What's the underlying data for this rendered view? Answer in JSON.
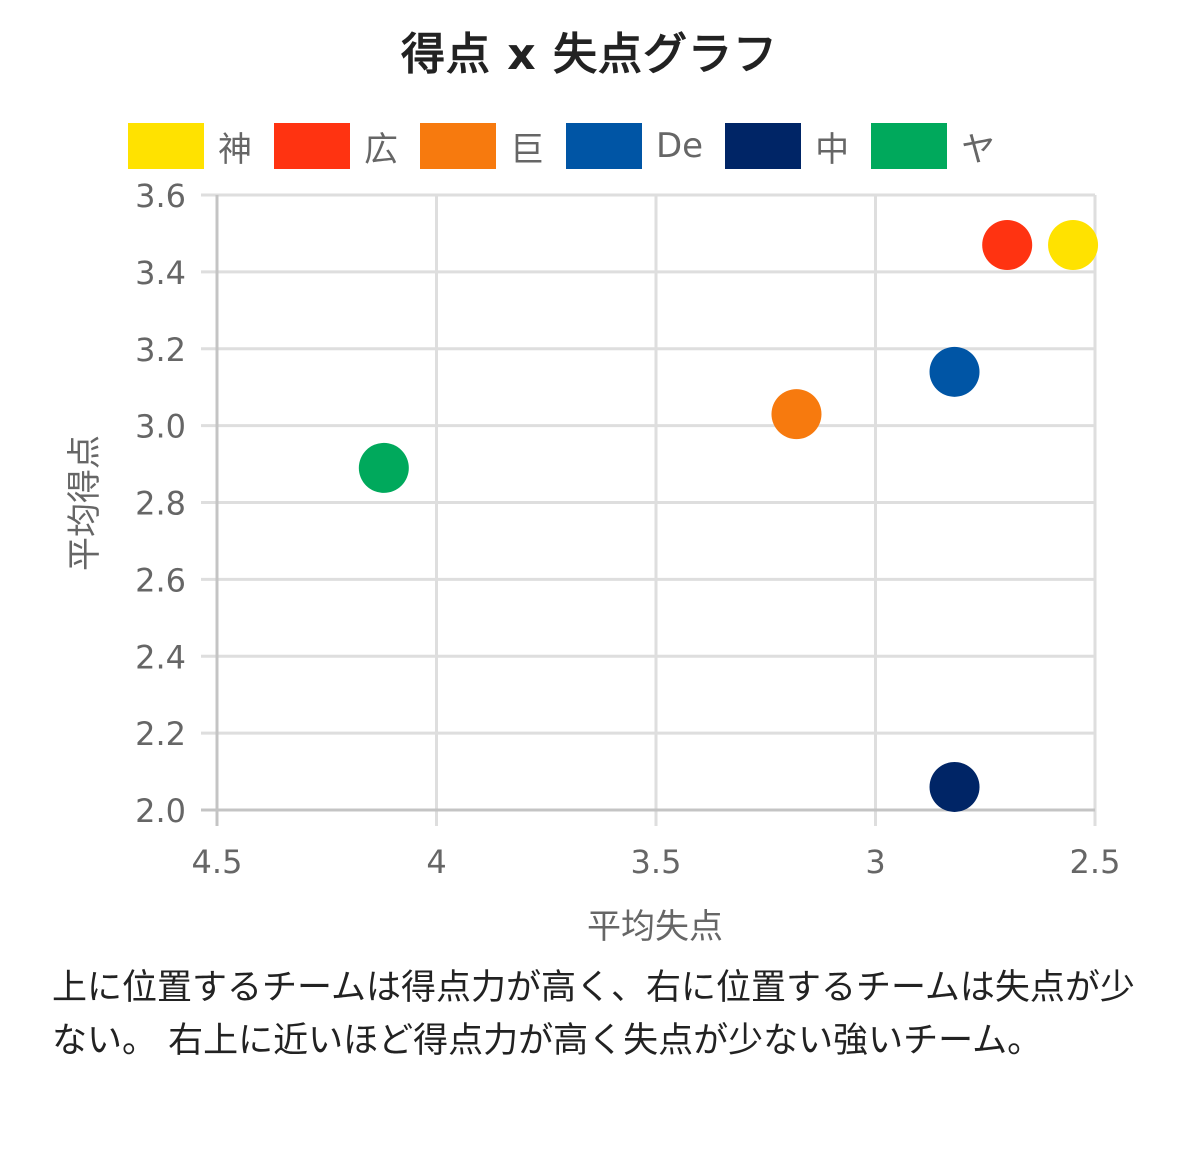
{
  "chart_data": {
    "type": "scatter",
    "title": "得点 x 失点グラフ",
    "xlabel": "平均失点",
    "ylabel": "平均得点",
    "xlim": [
      4.5,
      2.5
    ],
    "x_reversed": true,
    "ylim": [
      2.0,
      3.6
    ],
    "x_ticks": [
      "4.5",
      "4",
      "3.5",
      "3",
      "2.5"
    ],
    "y_ticks": [
      "3.6",
      "3.4",
      "3.2",
      "3.0",
      "2.8",
      "2.6",
      "2.4",
      "2.2",
      "2.0"
    ],
    "grid": true,
    "legend_position": "top",
    "series": [
      {
        "name": "神",
        "color": "#FFE200",
        "points": [
          {
            "x": 2.55,
            "y": 3.47
          }
        ]
      },
      {
        "name": "広",
        "color": "#FF3311",
        "points": [
          {
            "x": 2.7,
            "y": 3.47
          }
        ]
      },
      {
        "name": "巨",
        "color": "#F77A0E",
        "points": [
          {
            "x": 3.18,
            "y": 3.03
          }
        ]
      },
      {
        "name": "De",
        "color": "#0055A5",
        "points": [
          {
            "x": 2.82,
            "y": 3.14
          }
        ]
      },
      {
        "name": "中",
        "color": "#002566",
        "points": [
          {
            "x": 2.82,
            "y": 2.06
          }
        ]
      },
      {
        "name": "ヤ",
        "color": "#00A95C",
        "points": [
          {
            "x": 4.12,
            "y": 2.89
          }
        ]
      }
    ]
  },
  "caption": "上に位置するチームは得点力が高く、右に位置するチームは失点が少ない。 右上に近いほど得点力が高く失点が少ない強いチーム。"
}
